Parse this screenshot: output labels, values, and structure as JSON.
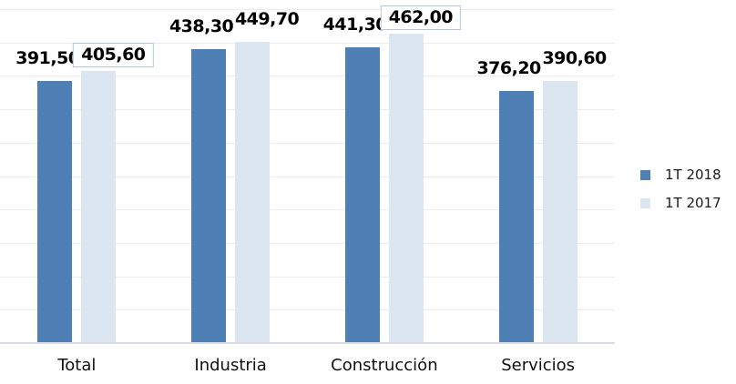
{
  "chart_data": {
    "type": "bar",
    "title": "",
    "xlabel": "",
    "ylabel": "",
    "categories": [
      "Total",
      "Industria",
      "Construcción",
      "Servicios"
    ],
    "series": [
      {
        "name": "1T 2018",
        "color": "#4e80b6",
        "values": [
          391.5,
          438.3,
          441.3,
          376.2
        ],
        "labels": [
          "391,50",
          "438,30",
          "441,30",
          "376,20"
        ],
        "boxed_labels": [
          false,
          false,
          false,
          false
        ]
      },
      {
        "name": "1T 2017",
        "color": "#dce6f1",
        "values": [
          405.6,
          449.7,
          462.0,
          390.6
        ],
        "labels": [
          "405,60",
          "449,70",
          "462,00",
          "390,60"
        ],
        "boxed_labels": [
          true,
          false,
          true,
          false
        ]
      }
    ],
    "ylim": [
      0,
      500
    ],
    "gridline_step": 50,
    "grid": true,
    "y_axis_labels_visible": false,
    "legend_position": "right",
    "colors": {
      "gridline": "#ececec",
      "axis_line": "#d7dbe2",
      "label_box_border": "#b7c6dc",
      "label_text": "#000000",
      "category_text": "#111111"
    }
  }
}
